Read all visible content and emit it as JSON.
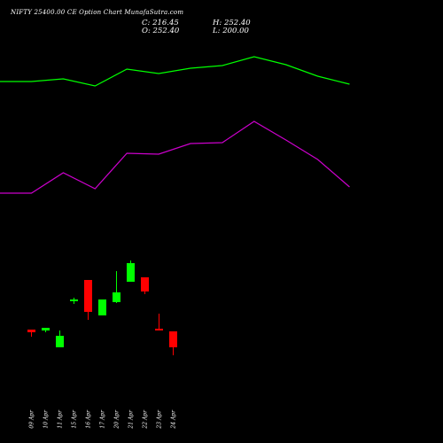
{
  "header": {
    "title": "NIFTY 25400.00  CE Option  Chart MunafaSutra.com",
    "close": "C: 216.45",
    "open": "O: 252.40",
    "high": "H: 252.40",
    "low": "L: 200.00"
  },
  "colors": {
    "background": "#000000",
    "up": "#00ff00",
    "down": "#ff0000",
    "upper_line": "#00ff00",
    "lower_line": "#cc00cc",
    "text": "#ffffff"
  },
  "chart_data": {
    "type": "candlestick",
    "categories": [
      "09 Apr",
      "10 Apr",
      "11 Apr",
      "15 Apr",
      "16 Apr",
      "17 Apr",
      "20 Apr",
      "21 Apr",
      "22 Apr",
      "23 Apr",
      "24 Apr"
    ],
    "candles": [
      {
        "date": "09 Apr",
        "open": 58,
        "high": 58,
        "low": 50,
        "close": 55
      },
      {
        "date": "10 Apr",
        "open": 57,
        "high": 60,
        "low": 55,
        "close": 60
      },
      {
        "date": "11 Apr",
        "open": 38,
        "high": 57,
        "low": 38,
        "close": 51
      },
      {
        "date": "15 Apr",
        "open": 90,
        "high": 94,
        "low": 87,
        "close": 92
      },
      {
        "date": "16 Apr",
        "open": 114,
        "high": 114,
        "low": 69,
        "close": 78
      },
      {
        "date": "17 Apr",
        "open": 74,
        "high": 92,
        "low": 74,
        "close": 92
      },
      {
        "date": "20 Apr",
        "open": 89,
        "high": 124,
        "low": 88,
        "close": 100
      },
      {
        "date": "21 Apr",
        "open": 112,
        "high": 136,
        "low": 112,
        "close": 133
      },
      {
        "date": "22 Apr",
        "open": 117,
        "high": 117,
        "low": 98,
        "close": 101
      },
      {
        "date": "23 Apr",
        "open": 59,
        "high": 76,
        "low": 57,
        "close": 58
      },
      {
        "date": "24 Apr",
        "open": 56,
        "high": 56,
        "low": 29,
        "close": 38
      }
    ],
    "series": [
      {
        "name": "",
        "color": "#00ff00",
        "x": [
          0,
          1,
          2,
          3,
          4,
          5,
          6,
          7,
          8,
          9,
          10,
          11
        ],
        "values": [
          338,
          338,
          341,
          333,
          352,
          347,
          353,
          356,
          366,
          357,
          344,
          335
        ]
      },
      {
        "name": "",
        "color": "#cc00cc",
        "x": [
          0,
          1,
          2,
          3,
          4,
          5,
          6,
          7,
          8,
          9,
          10,
          11
        ],
        "values": [
          212,
          212,
          235,
          217,
          257,
          256,
          268,
          269,
          293,
          272,
          250,
          219
        ]
      }
    ],
    "ylim": [
      -30,
      430
    ],
    "grid": false
  }
}
